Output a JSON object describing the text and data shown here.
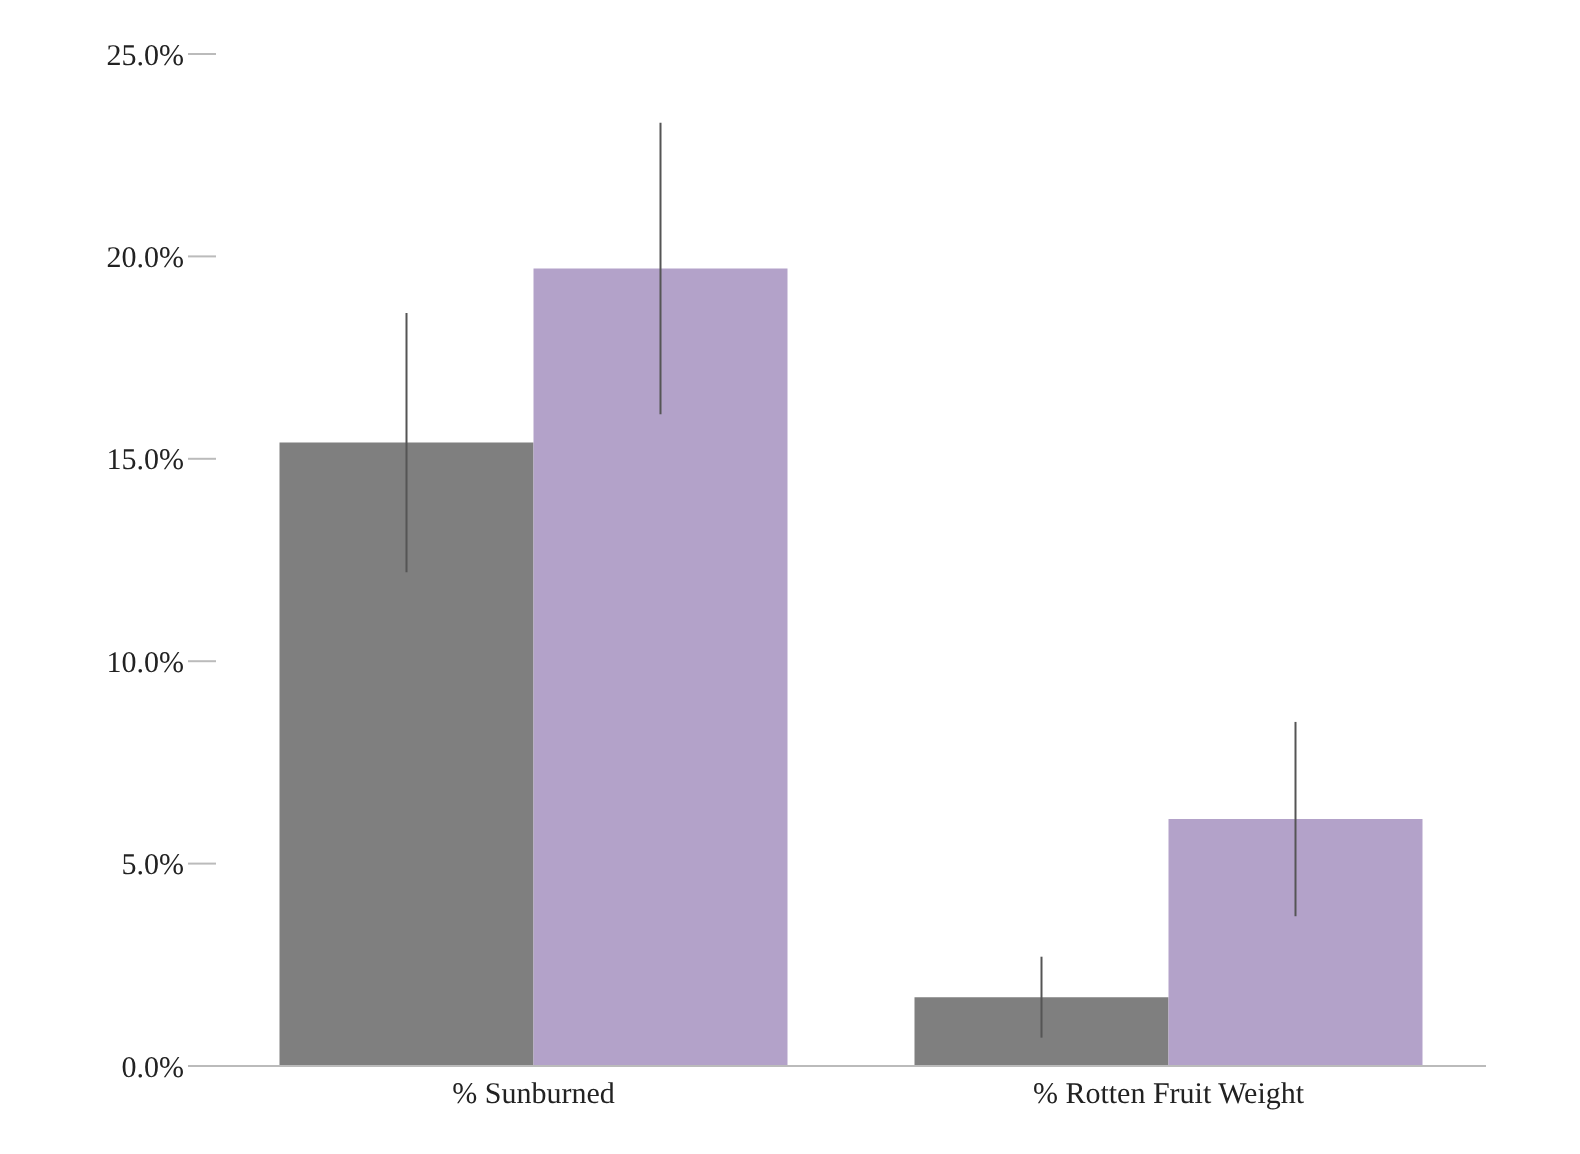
{
  "chart_data": {
    "type": "bar",
    "categories": [
      "% Sunburned",
      "% Rotten Fruit Weight"
    ],
    "series": [
      {
        "color": "#7f7f7f",
        "values": [
          15.4,
          1.7
        ],
        "errors": [
          3.2,
          1.0
        ]
      },
      {
        "color": "#b3a2c9",
        "values": [
          19.7,
          6.1
        ],
        "errors": [
          3.6,
          2.4
        ]
      }
    ],
    "ylim": [
      0,
      25
    ],
    "yticks": [
      {
        "value": 0,
        "label": "0.0%"
      },
      {
        "value": 5,
        "label": "5.0%"
      },
      {
        "value": 10,
        "label": "10.0%"
      },
      {
        "value": 15,
        "label": "15.0%"
      },
      {
        "value": 20,
        "label": "20.0%"
      },
      {
        "value": 25,
        "label": "25.0%"
      }
    ],
    "grid": false,
    "legend": false
  }
}
